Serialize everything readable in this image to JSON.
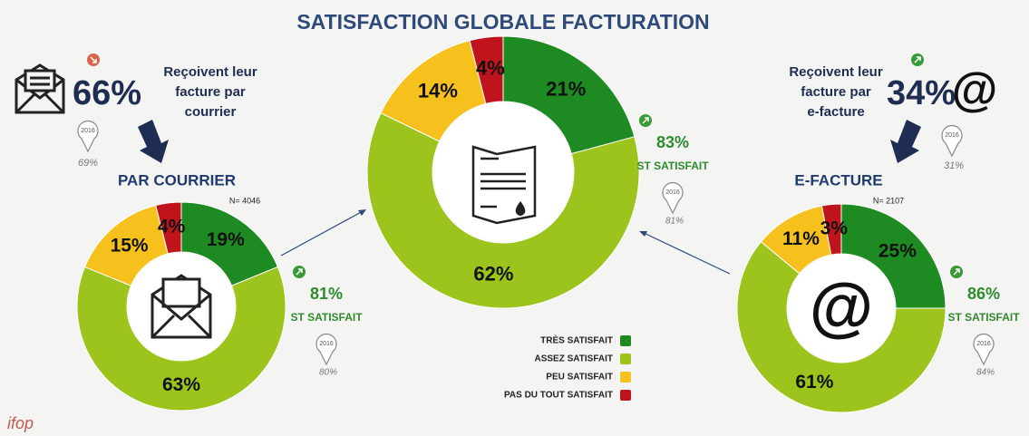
{
  "title": "SATISFACTION GLOBALE FACTURATION",
  "logo": "ifop",
  "channels": [
    {
      "share": "66%",
      "text": [
        "Reçoivent leur",
        "facture par",
        "courrier"
      ],
      "year": "2016",
      "previous": "69%"
    },
    {
      "share": "34%",
      "text": [
        "Reçoivent leur",
        "facture par",
        "e-facture"
      ],
      "year": "2016",
      "previous": "31%",
      "icon": "@"
    }
  ],
  "chart_data": [
    {
      "type": "donut",
      "title": "PAR COURRIER",
      "note": "N= 4046",
      "categories": [
        "TRÈS SATISFAIT",
        "ASSEZ SATISFAIT",
        "PEU SATISFAIT",
        "PAS DU TOUT SATISFAIT"
      ],
      "colors": [
        "#1e8a22",
        "#9cc41c",
        "#f7c11d",
        "#c0141c"
      ],
      "values": [
        19,
        63,
        15,
        4
      ],
      "value_labels": [
        "19%",
        "63%",
        "15%",
        "4%"
      ],
      "satisfied": "81%",
      "satisfied_label": "ST SATISFAIT",
      "year": "2016",
      "previous": "80%"
    },
    {
      "type": "donut",
      "categories": [
        "TRÈS SATISFAIT",
        "ASSEZ SATISFAIT",
        "PEU SATISFAIT",
        "PAS DU TOUT SATISFAIT"
      ],
      "colors": [
        "#1e8a22",
        "#9cc41c",
        "#f7c11d",
        "#c0141c"
      ],
      "values": [
        21,
        62,
        14,
        4
      ],
      "value_labels": [
        "21%",
        "62%",
        "14%",
        "4%"
      ],
      "satisfied": "83%",
      "satisfied_label": "ST SATISFAIT",
      "year": "2016",
      "previous": "81%"
    },
    {
      "type": "donut",
      "title": "E-FACTURE",
      "note": "N= 2107",
      "icon": "@",
      "categories": [
        "TRÈS SATISFAIT",
        "ASSEZ SATISFAIT",
        "PEU SATISFAIT",
        "PAS DU TOUT SATISFAIT"
      ],
      "colors": [
        "#1e8a22",
        "#9cc41c",
        "#f7c11d",
        "#c0141c"
      ],
      "values": [
        25,
        61,
        11,
        3
      ],
      "value_labels": [
        "25%",
        "61%",
        "11%",
        "3%"
      ],
      "satisfied": "86%",
      "satisfied_label": "ST SATISFAIT",
      "year": "2016",
      "previous": "84%"
    }
  ]
}
